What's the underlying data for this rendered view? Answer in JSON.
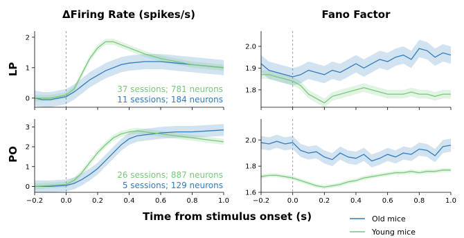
{
  "colors": {
    "old": "#2f7bbf",
    "young": "#78c77a"
  },
  "column_titles": [
    "ΔFiring Rate (spikes/s)",
    "Fano Factor"
  ],
  "row_labels": [
    "LP",
    "PO"
  ],
  "xlabel": "Time from stimulus onset (s)",
  "legend": [
    {
      "label": "Old mice",
      "color_key": "old"
    },
    {
      "label": "Young mice",
      "color_key": "young"
    }
  ],
  "annotations": {
    "lp": {
      "young": "37 sessions; 781 neurons",
      "old": "11 sessions; 184 neurons"
    },
    "po": {
      "young": "26 sessions; 887 neurons",
      "old": "5 sessions; 129 neurons"
    }
  },
  "chart_data": [
    {
      "id": "lp_fr",
      "type": "line",
      "title": "ΔFiring Rate (spikes/s)",
      "row": "LP",
      "xlim": [
        -0.2,
        1.0
      ],
      "ylim": [
        -0.3,
        2.2
      ],
      "xticks": [
        -0.2,
        0.0,
        0.2,
        0.4,
        0.6,
        0.8,
        1.0
      ],
      "xtick_labels": [
        "−0.2",
        "0.0",
        "0.2",
        "0.4",
        "0.6",
        "0.8",
        "1.0"
      ],
      "yticks": [
        0,
        1,
        2
      ],
      "ytick_labels": [
        "0",
        "1",
        "2"
      ],
      "onset_line_x": 0.0,
      "series": [
        {
          "key": "old",
          "label": "Old mice",
          "x": [
            -0.2,
            -0.15,
            -0.1,
            -0.05,
            0.0,
            0.05,
            0.1,
            0.15,
            0.2,
            0.25,
            0.3,
            0.35,
            0.4,
            0.5,
            0.6,
            0.7,
            0.8,
            0.9,
            1.0
          ],
          "y": [
            0.0,
            -0.05,
            -0.05,
            0.0,
            0.05,
            0.2,
            0.4,
            0.6,
            0.75,
            0.9,
            1.0,
            1.1,
            1.15,
            1.2,
            1.2,
            1.15,
            1.1,
            1.05,
            1.0
          ],
          "band": 0.25
        },
        {
          "key": "young",
          "label": "Young mice",
          "x": [
            -0.2,
            -0.15,
            -0.1,
            -0.05,
            0.0,
            0.05,
            0.1,
            0.15,
            0.2,
            0.25,
            0.3,
            0.35,
            0.4,
            0.5,
            0.6,
            0.7,
            0.8,
            0.9,
            1.0
          ],
          "y": [
            0.0,
            0.0,
            0.0,
            0.05,
            0.1,
            0.3,
            0.8,
            1.3,
            1.65,
            1.85,
            1.85,
            1.75,
            1.65,
            1.45,
            1.3,
            1.2,
            1.1,
            1.05,
            1.0
          ],
          "band": 0.1
        }
      ]
    },
    {
      "id": "lp_ff",
      "type": "line",
      "title": "Fano Factor",
      "row": "LP",
      "xlim": [
        -0.2,
        1.0
      ],
      "ylim": [
        1.72,
        2.07
      ],
      "xticks": [
        -0.2,
        0.0,
        0.2,
        0.4,
        0.6,
        0.8,
        1.0
      ],
      "xtick_labels": [
        "−0.2",
        "0.0",
        "0.2",
        "0.4",
        "0.6",
        "0.8",
        "1.0"
      ],
      "yticks": [
        1.8,
        1.9,
        2.0
      ],
      "ytick_labels": [
        "1.8",
        "1.9",
        "2.0"
      ],
      "onset_line_x": 0.0,
      "series": [
        {
          "key": "old",
          "label": "Old mice",
          "x": [
            -0.2,
            -0.15,
            -0.1,
            -0.05,
            0.0,
            0.05,
            0.1,
            0.15,
            0.2,
            0.25,
            0.3,
            0.35,
            0.4,
            0.45,
            0.5,
            0.55,
            0.6,
            0.65,
            0.7,
            0.75,
            0.8,
            0.85,
            0.9,
            0.95,
            1.0
          ],
          "y": [
            1.92,
            1.89,
            1.88,
            1.87,
            1.86,
            1.87,
            1.89,
            1.88,
            1.87,
            1.89,
            1.88,
            1.9,
            1.92,
            1.9,
            1.92,
            1.94,
            1.93,
            1.95,
            1.96,
            1.94,
            1.99,
            1.98,
            1.95,
            1.97,
            1.96
          ],
          "band": 0.04
        },
        {
          "key": "young",
          "label": "Young mice",
          "x": [
            -0.2,
            -0.15,
            -0.1,
            -0.05,
            0.0,
            0.05,
            0.1,
            0.15,
            0.2,
            0.25,
            0.3,
            0.35,
            0.4,
            0.45,
            0.5,
            0.55,
            0.6,
            0.65,
            0.7,
            0.75,
            0.8,
            0.85,
            0.9,
            0.95,
            1.0
          ],
          "y": [
            1.87,
            1.87,
            1.86,
            1.85,
            1.84,
            1.82,
            1.78,
            1.76,
            1.74,
            1.77,
            1.78,
            1.79,
            1.8,
            1.81,
            1.8,
            1.79,
            1.78,
            1.78,
            1.78,
            1.79,
            1.78,
            1.78,
            1.77,
            1.78,
            1.78
          ],
          "band": 0.02
        }
      ]
    },
    {
      "id": "po_fr",
      "type": "line",
      "title": "",
      "row": "PO",
      "xlim": [
        -0.2,
        1.0
      ],
      "ylim": [
        -0.3,
        3.4
      ],
      "xticks": [
        -0.2,
        0.0,
        0.2,
        0.4,
        0.6,
        0.8,
        1.0
      ],
      "xtick_labels": [
        "−0.2",
        "0.0",
        "0.2",
        "0.4",
        "0.6",
        "0.8",
        "1.0"
      ],
      "yticks": [
        0,
        1,
        2,
        3
      ],
      "ytick_labels": [
        "0",
        "1",
        "2",
        "3"
      ],
      "onset_line_x": 0.0,
      "series": [
        {
          "key": "old",
          "label": "Old mice",
          "x": [
            -0.2,
            -0.1,
            0.0,
            0.05,
            0.1,
            0.15,
            0.2,
            0.25,
            0.3,
            0.35,
            0.4,
            0.45,
            0.5,
            0.6,
            0.7,
            0.8,
            0.9,
            1.0
          ],
          "y": [
            0.0,
            0.0,
            0.05,
            0.15,
            0.35,
            0.6,
            0.9,
            1.3,
            1.7,
            2.1,
            2.4,
            2.55,
            2.6,
            2.7,
            2.75,
            2.75,
            2.8,
            2.85
          ],
          "band": 0.3
        },
        {
          "key": "young",
          "label": "Young mice",
          "x": [
            -0.2,
            -0.1,
            0.0,
            0.05,
            0.1,
            0.15,
            0.2,
            0.25,
            0.3,
            0.35,
            0.4,
            0.45,
            0.5,
            0.6,
            0.7,
            0.8,
            0.9,
            1.0
          ],
          "y": [
            0.0,
            0.05,
            0.1,
            0.3,
            0.7,
            1.2,
            1.7,
            2.1,
            2.45,
            2.65,
            2.75,
            2.8,
            2.75,
            2.65,
            2.55,
            2.45,
            2.35,
            2.25
          ],
          "band": 0.15
        }
      ]
    },
    {
      "id": "po_ff",
      "type": "line",
      "title": "",
      "row": "PO",
      "xlim": [
        -0.2,
        1.0
      ],
      "ylim": [
        1.6,
        2.16
      ],
      "xticks": [
        -0.2,
        0.0,
        0.2,
        0.4,
        0.6,
        0.8,
        1.0
      ],
      "xtick_labels": [
        "−0.2",
        "0.0",
        "0.2",
        "0.4",
        "0.6",
        "0.8",
        "1.0"
      ],
      "yticks": [
        1.6,
        1.8,
        2.0
      ],
      "ytick_labels": [
        "1.6",
        "1.8",
        "2.0"
      ],
      "onset_line_x": 0.0,
      "series": [
        {
          "key": "old",
          "label": "Old mice",
          "x": [
            -0.2,
            -0.15,
            -0.1,
            -0.05,
            0.0,
            0.05,
            0.1,
            0.15,
            0.2,
            0.25,
            0.3,
            0.35,
            0.4,
            0.45,
            0.5,
            0.55,
            0.6,
            0.65,
            0.7,
            0.75,
            0.8,
            0.85,
            0.9,
            0.95,
            1.0
          ],
          "y": [
            1.98,
            1.97,
            1.99,
            1.97,
            1.98,
            1.92,
            1.9,
            1.91,
            1.87,
            1.85,
            1.9,
            1.87,
            1.86,
            1.89,
            1.84,
            1.86,
            1.89,
            1.87,
            1.9,
            1.89,
            1.93,
            1.92,
            1.88,
            1.95,
            1.96
          ],
          "band": 0.05
        },
        {
          "key": "young",
          "label": "Young mice",
          "x": [
            -0.2,
            -0.15,
            -0.1,
            -0.05,
            0.0,
            0.05,
            0.1,
            0.15,
            0.2,
            0.25,
            0.3,
            0.35,
            0.4,
            0.45,
            0.5,
            0.55,
            0.6,
            0.65,
            0.7,
            0.75,
            0.8,
            0.85,
            0.9,
            0.95,
            1.0
          ],
          "y": [
            1.72,
            1.73,
            1.73,
            1.72,
            1.71,
            1.69,
            1.67,
            1.65,
            1.64,
            1.65,
            1.66,
            1.68,
            1.69,
            1.71,
            1.72,
            1.73,
            1.74,
            1.75,
            1.75,
            1.76,
            1.75,
            1.76,
            1.76,
            1.77,
            1.77
          ],
          "band": 0.015
        }
      ]
    }
  ]
}
